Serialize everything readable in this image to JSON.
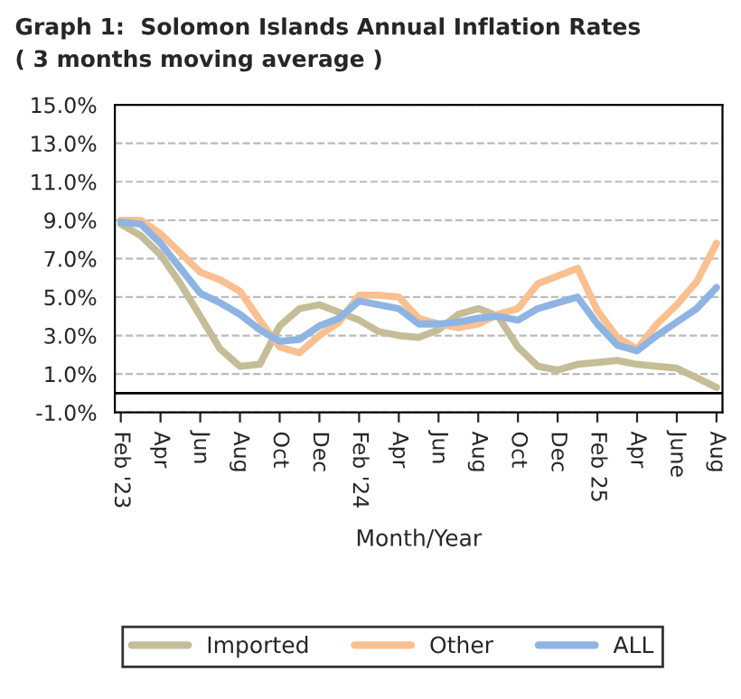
{
  "chart_data": {
    "type": "line",
    "title": "Graph 1:  Solomon Islands Annual Inflation Rates\n( 3 months moving average )",
    "xlabel": "Month/Year",
    "categories": [
      "Feb '23",
      null,
      "Apr",
      null,
      "Jun",
      null,
      "Aug",
      null,
      "Oct",
      null,
      "Dec",
      null,
      "Feb '24",
      null,
      "Apr",
      null,
      "Jun",
      null,
      "Aug",
      null,
      "Oct",
      null,
      "Dec",
      null,
      "Feb 25",
      null,
      "Apr",
      null,
      "June",
      null,
      "Aug"
    ],
    "series": [
      {
        "name": "Imported",
        "color": "#c4bd97",
        "values": [
          8.8,
          8.2,
          7.2,
          5.7,
          4.0,
          2.3,
          1.4,
          1.5,
          3.5,
          4.4,
          4.6,
          4.2,
          3.8,
          3.2,
          3.0,
          2.9,
          3.3,
          4.1,
          4.4,
          4.0,
          2.4,
          1.4,
          1.2,
          1.5,
          1.6,
          1.7,
          1.5,
          1.4,
          1.3,
          0.8,
          0.3
        ]
      },
      {
        "name": "Other",
        "color": "#fac090",
        "values": [
          9.0,
          9.0,
          8.3,
          7.3,
          6.3,
          5.9,
          5.3,
          3.8,
          2.4,
          2.1,
          3.0,
          3.7,
          5.1,
          5.1,
          5.0,
          3.9,
          3.6,
          3.4,
          3.6,
          4.1,
          4.4,
          5.7,
          6.1,
          6.5,
          4.3,
          2.9,
          2.3,
          3.6,
          4.6,
          5.8,
          7.8
        ]
      },
      {
        "name": "ALL",
        "color": "#8eb4e3",
        "values": [
          8.9,
          8.8,
          7.8,
          6.5,
          5.2,
          4.7,
          4.1,
          3.3,
          2.7,
          2.8,
          3.5,
          3.9,
          4.8,
          4.6,
          4.4,
          3.6,
          3.6,
          3.7,
          3.9,
          4.0,
          3.8,
          4.4,
          4.7,
          5.0,
          3.6,
          2.5,
          2.2,
          3.0,
          3.7,
          4.4,
          5.5
        ]
      }
    ],
    "ylim": [
      -1.0,
      15.0
    ],
    "yticks": [
      {
        "value": -1.0,
        "label": "-1.0%"
      },
      {
        "value": 1.0,
        "label": "1.0%"
      },
      {
        "value": 3.0,
        "label": "3.0%"
      },
      {
        "value": 5.0,
        "label": "5.0%"
      },
      {
        "value": 7.0,
        "label": "7.0%"
      },
      {
        "value": 9.0,
        "label": "9.0%"
      },
      {
        "value": 11.0,
        "label": "11.0%"
      },
      {
        "value": 13.0,
        "label": "13.0%"
      },
      {
        "value": 15.0,
        "label": "15.0%"
      }
    ],
    "grid": "y",
    "legend": "bottom",
    "marker": "none",
    "line_style": "solid"
  }
}
